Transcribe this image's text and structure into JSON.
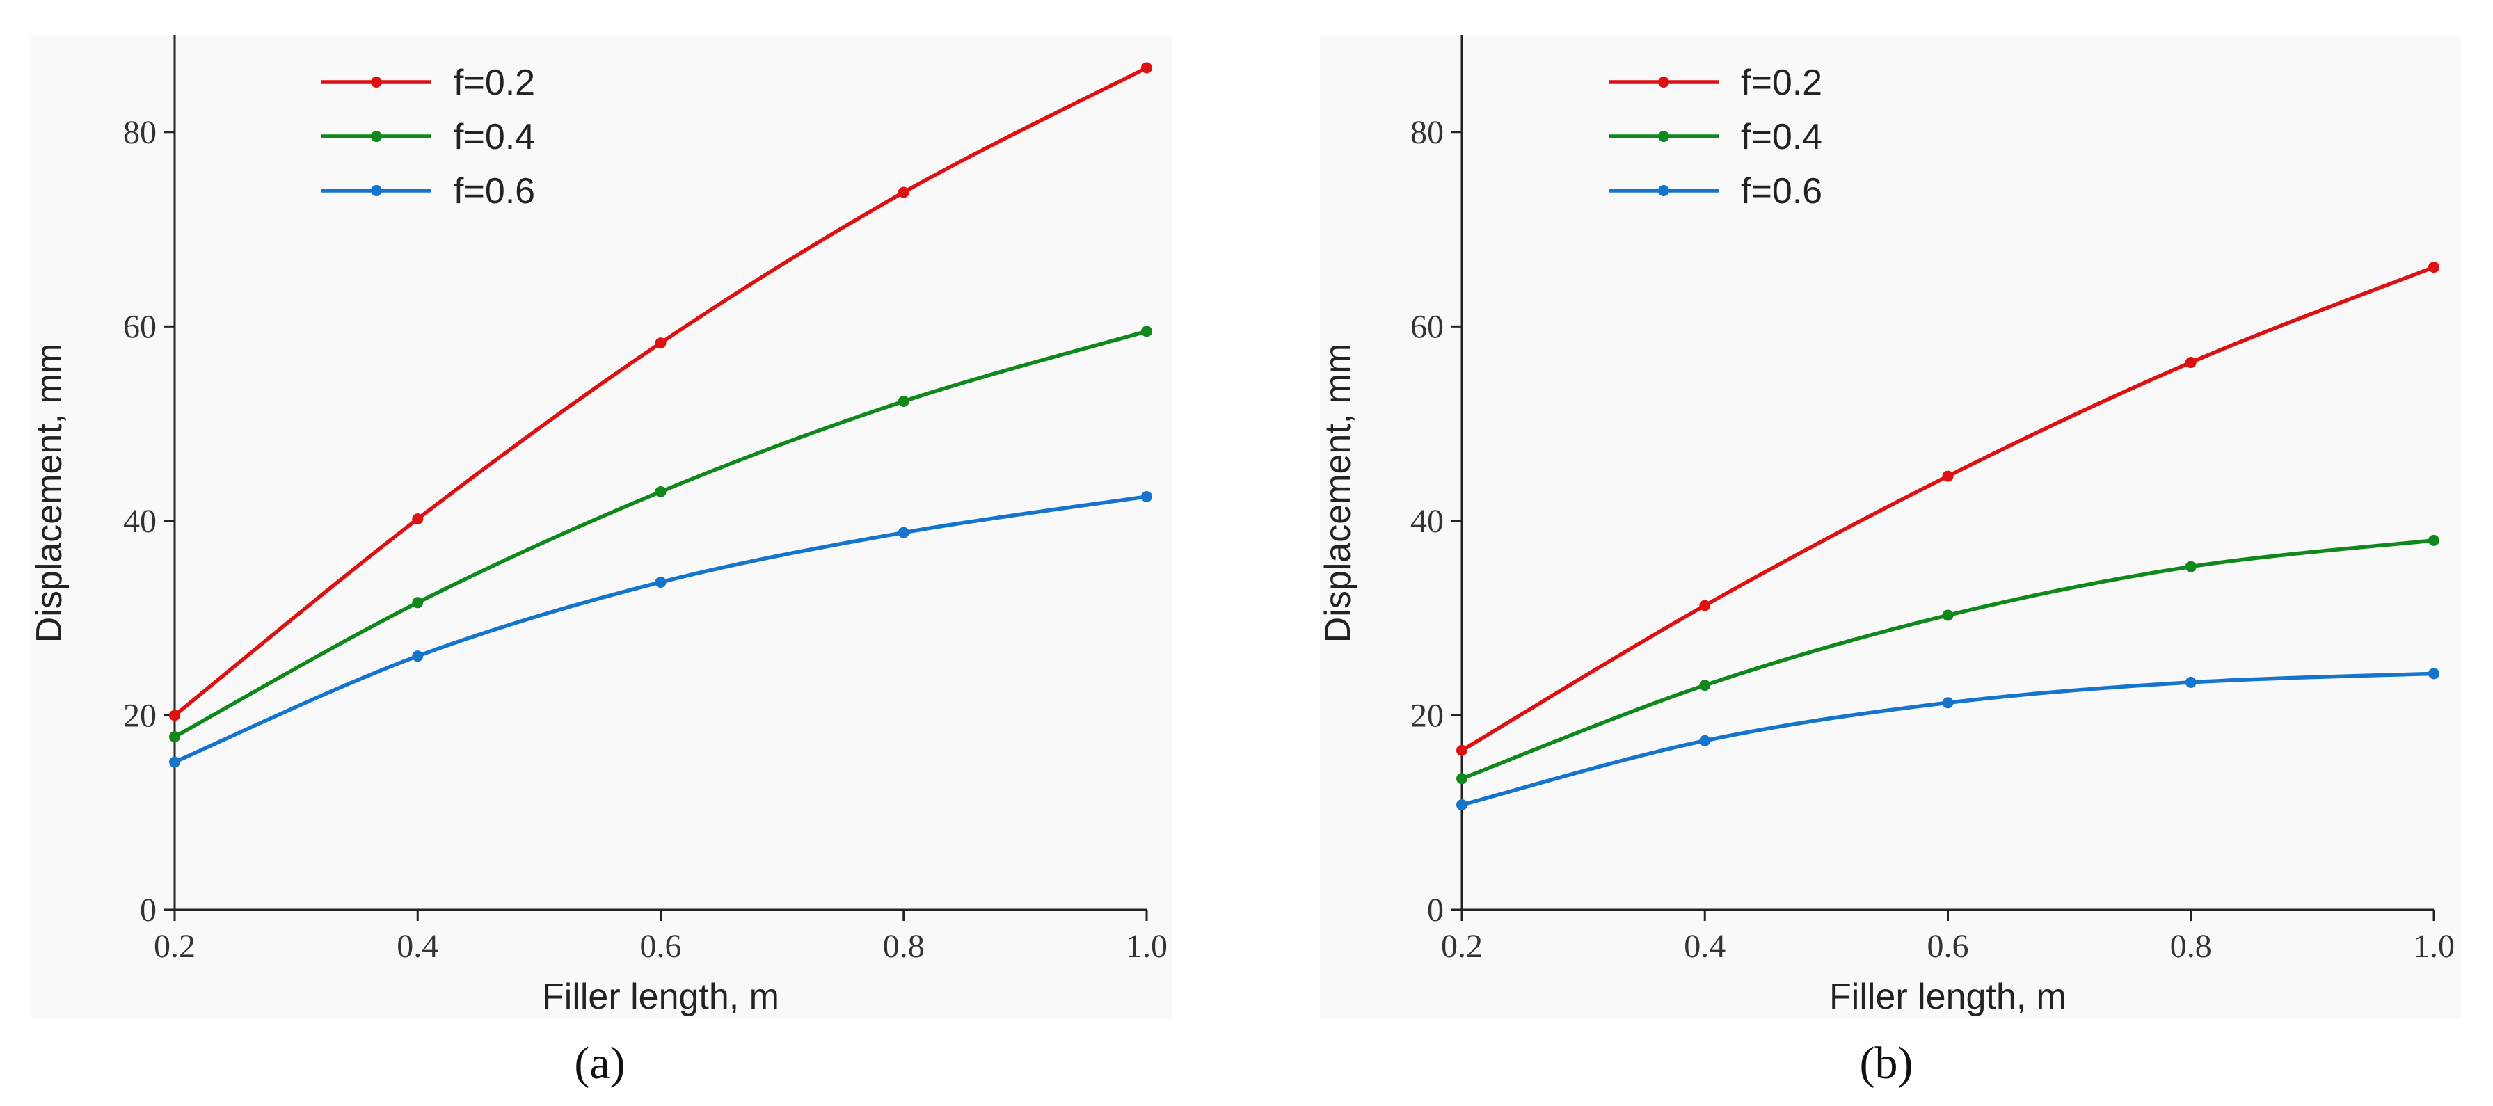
{
  "chart_data": [
    {
      "panel_label": "(a)",
      "type": "line",
      "xlabel": "Filler length, m",
      "ylabel": "Displacement, mm",
      "xlim": [
        0.2,
        1.0
      ],
      "ylim": [
        0,
        90
      ],
      "x_ticks": [
        "0.2",
        "0.4",
        "0.6",
        "0.8",
        "1.0"
      ],
      "y_ticks": [
        "0",
        "20",
        "40",
        "60",
        "80"
      ],
      "x": [
        0.2,
        0.4,
        0.6,
        0.8,
        1.0
      ],
      "legend_position": "top-left",
      "grid": false,
      "series": [
        {
          "name": "f=0.2",
          "color": "#dd1111",
          "values": [
            20.0,
            40.2,
            58.3,
            73.8,
            86.6
          ]
        },
        {
          "name": "f=0.4",
          "color": "#11881c",
          "values": [
            17.8,
            31.6,
            43.0,
            52.3,
            59.5
          ]
        },
        {
          "name": "f=0.6",
          "color": "#1575cc",
          "values": [
            15.2,
            26.1,
            33.7,
            38.8,
            42.5
          ]
        }
      ]
    },
    {
      "panel_label": "(b)",
      "type": "line",
      "xlabel": "Filler length, m",
      "ylabel": "Displacement, mm",
      "xlim": [
        0.2,
        1.0
      ],
      "ylim": [
        0,
        90
      ],
      "x_ticks": [
        "0.2",
        "0.4",
        "0.6",
        "0.8",
        "1.0"
      ],
      "y_ticks": [
        "0",
        "20",
        "40",
        "60",
        "80"
      ],
      "x": [
        0.2,
        0.4,
        0.6,
        0.8,
        1.0
      ],
      "legend_position": "top-left",
      "grid": false,
      "series": [
        {
          "name": "f=0.2",
          "color": "#dd1111",
          "values": [
            16.4,
            31.3,
            44.6,
            56.3,
            66.1
          ]
        },
        {
          "name": "f=0.4",
          "color": "#11881c",
          "values": [
            13.5,
            23.1,
            30.3,
            35.3,
            38.0
          ]
        },
        {
          "name": "f=0.6",
          "color": "#1575cc",
          "values": [
            10.8,
            17.4,
            21.3,
            23.4,
            24.3
          ]
        }
      ]
    }
  ]
}
